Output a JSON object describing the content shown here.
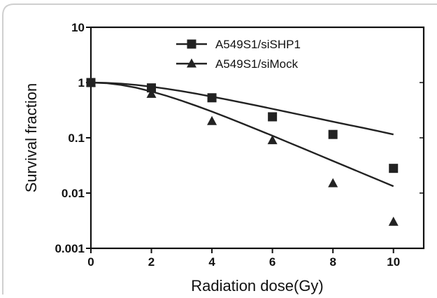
{
  "chart_data": {
    "type": "scatter",
    "title": "",
    "xlabel": "Radiation dose(Gy)",
    "ylabel": "Survival fraction",
    "xlim": [
      0,
      11
    ],
    "ylim": [
      0.001,
      10
    ],
    "yscale": "log",
    "grid": false,
    "legend_position": "top-center",
    "x_ticks": [
      0,
      2,
      4,
      6,
      8,
      10
    ],
    "x_tick_labels": [
      "0",
      "2",
      "4",
      "6",
      "8",
      "10"
    ],
    "y_ticks": [
      0.001,
      0.01,
      0.1,
      1,
      10
    ],
    "y_tick_labels": [
      "0.001",
      "0.01",
      "0.1",
      "1",
      "10"
    ],
    "series": [
      {
        "name": "A549S1/siSHP1",
        "marker": "square",
        "color": "#222222",
        "x": [
          0,
          2,
          4,
          6,
          8,
          10
        ],
        "y": [
          1.0,
          0.8,
          0.53,
          0.24,
          0.115,
          0.028
        ],
        "fit_x": [
          0,
          0.5,
          1,
          1.5,
          2,
          2.5,
          3,
          3.5,
          4,
          4.5,
          5,
          5.5,
          6,
          6.5,
          7,
          7.5,
          8,
          8.5,
          9,
          9.5,
          10
        ],
        "fit_y": [
          1.0,
          0.988,
          0.955,
          0.905,
          0.842,
          0.772,
          0.699,
          0.626,
          0.556,
          0.492,
          0.433,
          0.381,
          0.334,
          0.292,
          0.256,
          0.224,
          0.196,
          0.172,
          0.151,
          0.132,
          0.115
        ]
      },
      {
        "name": "A549S1/siMock",
        "marker": "triangle",
        "color": "#222222",
        "x": [
          0,
          2,
          4,
          6,
          8,
          10
        ],
        "y": [
          1.0,
          0.62,
          0.2,
          0.09,
          0.015,
          0.003
        ],
        "fit_x": [
          0,
          0.5,
          1,
          1.5,
          2,
          2.5,
          3,
          3.5,
          4,
          4.5,
          5,
          5.5,
          6,
          6.5,
          7,
          7.5,
          8,
          8.5,
          9,
          9.5,
          10
        ],
        "fit_y": [
          1.0,
          0.975,
          0.905,
          0.804,
          0.689,
          0.575,
          0.469,
          0.376,
          0.298,
          0.234,
          0.182,
          0.141,
          0.109,
          0.0838,
          0.0645,
          0.0496,
          0.0381,
          0.0293,
          0.0225,
          0.0173,
          0.0133
        ]
      }
    ]
  }
}
